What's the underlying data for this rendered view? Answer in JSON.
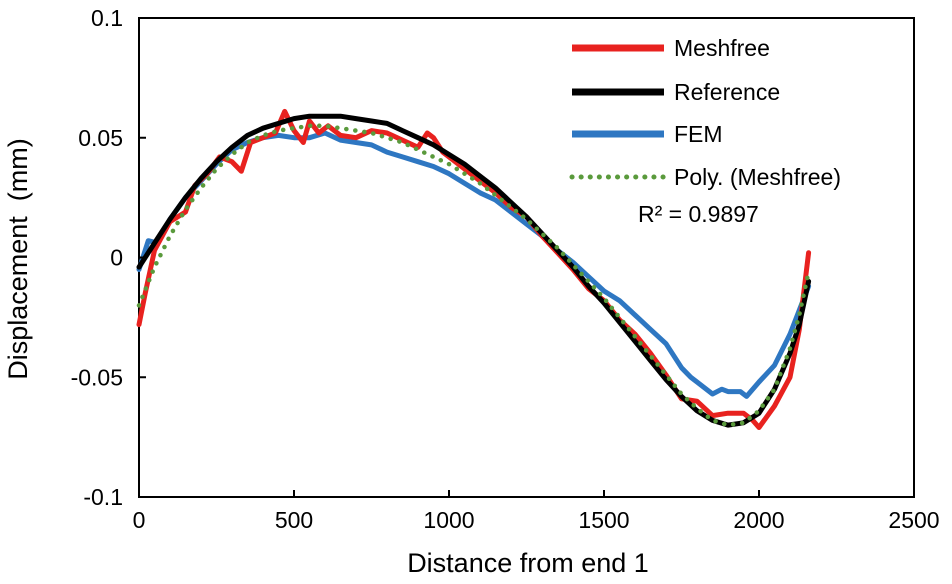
{
  "chart_data": {
    "type": "line",
    "title": "",
    "xlabel": "Distance from end 1",
    "ylabel": "Displacement  (mm)",
    "xlim": [
      0,
      2500
    ],
    "ylim": [
      -0.1,
      0.1
    ],
    "x_ticks": [
      0,
      500,
      1000,
      1500,
      2000,
      2500
    ],
    "x_tick_labels": [
      "0",
      "500",
      "1000",
      "1500",
      "2000",
      "2500"
    ],
    "y_ticks": [
      0.1,
      0.05,
      0,
      -0.05,
      -0.1
    ],
    "y_tick_labels": [
      "0.1",
      "0.05",
      "0",
      "-0.05",
      "-0.1"
    ],
    "grid": false,
    "legend_position": "top-right",
    "annotation": "R² = 0.9897",
    "series": [
      {
        "name": "Meshfree",
        "color": "#e8221f",
        "style": "solid",
        "x": [
          0,
          20,
          50,
          100,
          150,
          180,
          220,
          260,
          300,
          330,
          360,
          400,
          440,
          470,
          500,
          530,
          550,
          580,
          610,
          650,
          700,
          750,
          800,
          850,
          900,
          930,
          950,
          980,
          1000,
          1050,
          1100,
          1150,
          1200,
          1250,
          1300,
          1350,
          1400,
          1450,
          1500,
          1550,
          1600,
          1650,
          1700,
          1750,
          1800,
          1850,
          1900,
          1950,
          1980,
          2000,
          2050,
          2100,
          2130,
          2160
        ],
        "y": [
          -0.028,
          -0.015,
          0.003,
          0.015,
          0.019,
          0.03,
          0.035,
          0.042,
          0.04,
          0.036,
          0.048,
          0.05,
          0.052,
          0.061,
          0.053,
          0.048,
          0.057,
          0.052,
          0.055,
          0.051,
          0.05,
          0.053,
          0.052,
          0.049,
          0.046,
          0.052,
          0.05,
          0.044,
          0.042,
          0.037,
          0.032,
          0.027,
          0.021,
          0.017,
          0.009,
          0.002,
          -0.005,
          -0.013,
          -0.018,
          -0.026,
          -0.032,
          -0.04,
          -0.049,
          -0.059,
          -0.06,
          -0.066,
          -0.065,
          -0.065,
          -0.068,
          -0.071,
          -0.062,
          -0.05,
          -0.03,
          0.002
        ]
      },
      {
        "name": "Reference",
        "color": "#000000",
        "style": "solid",
        "x": [
          0,
          50,
          100,
          150,
          200,
          250,
          300,
          350,
          400,
          450,
          500,
          550,
          600,
          650,
          700,
          750,
          800,
          850,
          900,
          950,
          1000,
          1050,
          1100,
          1150,
          1200,
          1250,
          1300,
          1350,
          1400,
          1450,
          1500,
          1550,
          1600,
          1650,
          1700,
          1750,
          1800,
          1850,
          1900,
          1950,
          2000,
          2050,
          2100,
          2130,
          2160
        ],
        "y": [
          -0.004,
          0.006,
          0.016,
          0.025,
          0.033,
          0.04,
          0.046,
          0.051,
          0.054,
          0.056,
          0.058,
          0.059,
          0.059,
          0.059,
          0.058,
          0.057,
          0.056,
          0.053,
          0.05,
          0.047,
          0.043,
          0.039,
          0.034,
          0.029,
          0.023,
          0.017,
          0.01,
          0.003,
          -0.004,
          -0.012,
          -0.019,
          -0.027,
          -0.035,
          -0.043,
          -0.051,
          -0.058,
          -0.064,
          -0.068,
          -0.07,
          -0.069,
          -0.065,
          -0.055,
          -0.04,
          -0.028,
          -0.01
        ]
      },
      {
        "name": "FEM",
        "color": "#2e77c2",
        "style": "solid",
        "x": [
          0,
          30,
          60,
          100,
          150,
          200,
          250,
          300,
          350,
          400,
          450,
          500,
          550,
          600,
          650,
          700,
          750,
          800,
          850,
          900,
          950,
          1000,
          1050,
          1100,
          1150,
          1200,
          1250,
          1300,
          1350,
          1400,
          1450,
          1500,
          1550,
          1600,
          1650,
          1700,
          1750,
          1780,
          1800,
          1850,
          1880,
          1900,
          1940,
          1960,
          2000,
          2050,
          2100,
          2160
        ],
        "y": [
          -0.005,
          0.007,
          0.006,
          0.016,
          0.025,
          0.032,
          0.039,
          0.045,
          0.048,
          0.05,
          0.051,
          0.05,
          0.05,
          0.052,
          0.049,
          0.048,
          0.047,
          0.044,
          0.042,
          0.04,
          0.038,
          0.035,
          0.031,
          0.027,
          0.024,
          0.019,
          0.014,
          0.009,
          0.003,
          -0.002,
          -0.008,
          -0.014,
          -0.018,
          -0.024,
          -0.03,
          -0.036,
          -0.046,
          -0.05,
          -0.052,
          -0.057,
          -0.055,
          -0.056,
          -0.056,
          -0.058,
          -0.052,
          -0.045,
          -0.032,
          -0.012
        ]
      },
      {
        "name": "Poly. (Meshfree)",
        "color": "#5a9a3c",
        "style": "dotted",
        "x": [
          0,
          50,
          100,
          150,
          200,
          250,
          300,
          350,
          400,
          450,
          500,
          550,
          600,
          650,
          700,
          750,
          800,
          850,
          900,
          950,
          1000,
          1050,
          1100,
          1150,
          1200,
          1250,
          1300,
          1350,
          1400,
          1450,
          1500,
          1550,
          1600,
          1650,
          1700,
          1750,
          1800,
          1850,
          1900,
          1950,
          2000,
          2050,
          2100,
          2130,
          2160
        ],
        "y": [
          -0.02,
          -0.004,
          0.009,
          0.02,
          0.029,
          0.037,
          0.043,
          0.048,
          0.051,
          0.053,
          0.054,
          0.055,
          0.055,
          0.054,
          0.053,
          0.052,
          0.05,
          0.048,
          0.045,
          0.042,
          0.039,
          0.035,
          0.031,
          0.026,
          0.021,
          0.016,
          0.01,
          0.004,
          -0.003,
          -0.01,
          -0.017,
          -0.025,
          -0.033,
          -0.041,
          -0.049,
          -0.057,
          -0.063,
          -0.068,
          -0.07,
          -0.069,
          -0.064,
          -0.055,
          -0.038,
          -0.024,
          -0.006
        ]
      }
    ]
  }
}
